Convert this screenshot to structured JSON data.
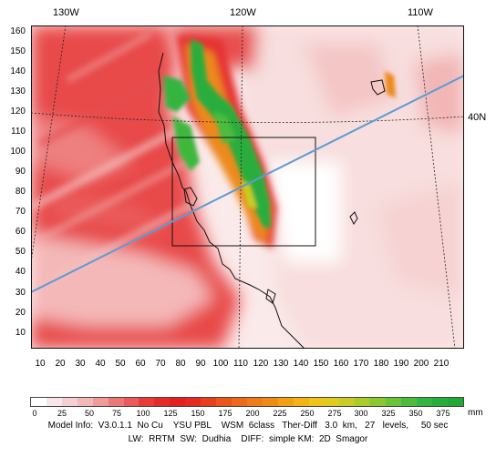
{
  "top_lon_labels": [
    "130W",
    "120W",
    "110W"
  ],
  "right_lat_label": "40N",
  "y_tick_labels": [
    "160",
    "150",
    "140",
    "130",
    "120",
    "110",
    "100",
    "90",
    "80",
    "70",
    "60",
    "50",
    "40",
    "30",
    "20",
    "10"
  ],
  "x_tick_labels": [
    "10",
    "20",
    "30",
    "40",
    "50",
    "60",
    "70",
    "80",
    "90",
    "100",
    "110",
    "120",
    "130",
    "140",
    "150",
    "160",
    "170",
    "180",
    "190",
    "200",
    "210"
  ],
  "colorbar": {
    "labels": [
      "0",
      "25",
      "50",
      "75",
      "100",
      "125",
      "150",
      "175",
      "200",
      "225",
      "250",
      "275",
      "300",
      "325",
      "350",
      "375"
    ],
    "unit": "mm",
    "colors": [
      "#ffffff",
      "#f9e6e6",
      "#f6d0d0",
      "#f3b8b8",
      "#f09a9a",
      "#ed7878",
      "#eb5a5a",
      "#e83c3c",
      "#e52a2a",
      "#e51e1e",
      "#e62a22",
      "#e8401e",
      "#ea561c",
      "#ec6a1a",
      "#ee7c18",
      "#f08c16",
      "#f2a014",
      "#f2b414",
      "#eec41a",
      "#e0cc20",
      "#c8cc26",
      "#aacb2c",
      "#8cc832",
      "#6cc238",
      "#4cbc3c",
      "#34b440",
      "#28ae3c",
      "#20a838"
    ]
  },
  "model_info_line1": "Model Info:  V3.0.1.1  No Cu    YSU PBL    WSM  6class   Ther-Diff   3.0  km,   27   levels,     50 sec",
  "model_info_line2": "LW:  RRTM  SW:  Dudhia    DIFF:  simple KM:  2D  Smagor",
  "map": {
    "inner_box_label": "",
    "cross_section_color": "#5b9bd5",
    "coastline_color": "#111111"
  }
}
